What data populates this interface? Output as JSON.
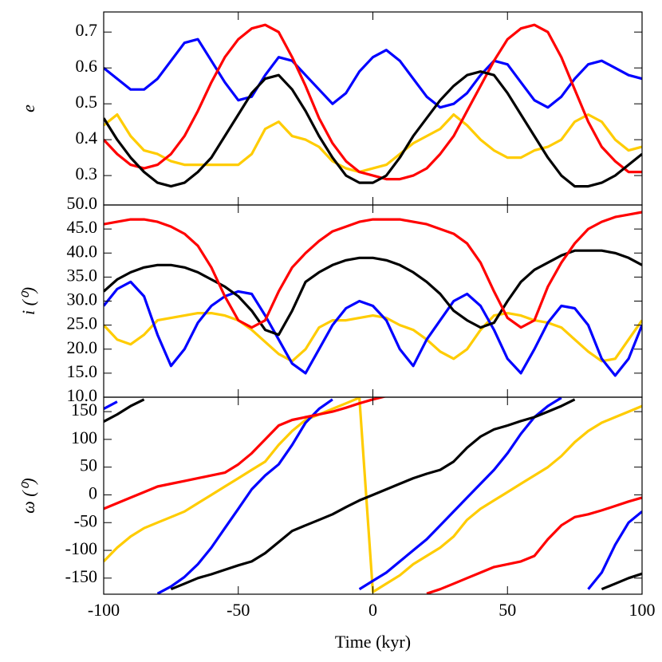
{
  "chart_data": [
    {
      "type": "line",
      "ylabel": "e",
      "x": [
        -100,
        -95,
        -90,
        -85,
        -80,
        -75,
        -70,
        -65,
        -60,
        -55,
        -50,
        -45,
        -40,
        -35,
        -30,
        -25,
        -20,
        -15,
        -10,
        -5,
        0,
        5,
        10,
        15,
        20,
        25,
        30,
        35,
        40,
        45,
        50,
        55,
        60,
        65,
        70,
        75,
        80,
        85,
        90,
        95,
        100
      ],
      "xlim": [
        -100,
        100
      ],
      "ylim": [
        0.218,
        0.756
      ],
      "yticks": [
        0.3,
        0.4,
        0.5,
        0.6,
        0.7
      ],
      "series": [
        {
          "color": "#ffcc00",
          "values": [
            0.44,
            0.47,
            0.41,
            0.37,
            0.36,
            0.34,
            0.33,
            0.33,
            0.33,
            0.33,
            0.33,
            0.36,
            0.43,
            0.45,
            0.41,
            0.4,
            0.38,
            0.34,
            0.32,
            0.31,
            0.32,
            0.33,
            0.36,
            0.39,
            0.41,
            0.43,
            0.47,
            0.44,
            0.4,
            0.37,
            0.35,
            0.35,
            0.37,
            0.38,
            0.4,
            0.45,
            0.47,
            0.45,
            0.4,
            0.37,
            0.38
          ]
        },
        {
          "color": "#0000ff",
          "values": [
            0.6,
            0.57,
            0.54,
            0.54,
            0.57,
            0.62,
            0.67,
            0.68,
            0.62,
            0.56,
            0.51,
            0.52,
            0.58,
            0.63,
            0.62,
            0.58,
            0.54,
            0.5,
            0.53,
            0.59,
            0.63,
            0.65,
            0.62,
            0.57,
            0.52,
            0.49,
            0.5,
            0.53,
            0.58,
            0.62,
            0.61,
            0.56,
            0.51,
            0.49,
            0.52,
            0.57,
            0.61,
            0.62,
            0.6,
            0.58,
            0.57
          ]
        },
        {
          "color": "#ff0000",
          "values": [
            0.4,
            0.36,
            0.33,
            0.32,
            0.33,
            0.36,
            0.41,
            0.48,
            0.56,
            0.63,
            0.68,
            0.71,
            0.72,
            0.7,
            0.63,
            0.55,
            0.46,
            0.39,
            0.34,
            0.31,
            0.3,
            0.29,
            0.29,
            0.3,
            0.32,
            0.36,
            0.41,
            0.48,
            0.55,
            0.62,
            0.68,
            0.71,
            0.72,
            0.7,
            0.63,
            0.54,
            0.45,
            0.38,
            0.34,
            0.31,
            0.31
          ]
        },
        {
          "color": "#000000",
          "values": [
            0.46,
            0.4,
            0.35,
            0.31,
            0.28,
            0.27,
            0.28,
            0.31,
            0.35,
            0.41,
            0.47,
            0.53,
            0.57,
            0.58,
            0.54,
            0.48,
            0.41,
            0.35,
            0.3,
            0.28,
            0.28,
            0.3,
            0.35,
            0.41,
            0.46,
            0.51,
            0.55,
            0.58,
            0.59,
            0.58,
            0.53,
            0.47,
            0.41,
            0.35,
            0.3,
            0.27,
            0.27,
            0.28,
            0.3,
            0.33,
            0.36
          ]
        }
      ]
    },
    {
      "type": "line",
      "ylabel": "i (⁰)",
      "x": [
        -100,
        -95,
        -90,
        -85,
        -80,
        -75,
        -70,
        -65,
        -60,
        -55,
        -50,
        -45,
        -40,
        -35,
        -30,
        -25,
        -20,
        -15,
        -10,
        -5,
        0,
        5,
        10,
        15,
        20,
        25,
        30,
        35,
        40,
        45,
        50,
        55,
        60,
        65,
        70,
        75,
        80,
        85,
        90,
        95,
        100
      ],
      "xlim": [
        -100,
        100
      ],
      "ylim": [
        10,
        50
      ],
      "yticks": [
        {
          "value": 10,
          "label": "10.0"
        },
        {
          "value": 15,
          "label": "15.0"
        },
        {
          "value": 20,
          "label": "20.0"
        },
        {
          "value": 25,
          "label": "25.0"
        },
        {
          "value": 30,
          "label": "30.0"
        },
        {
          "value": 35,
          "label": "35.0"
        },
        {
          "value": 40,
          "label": "40.0"
        },
        {
          "value": 45,
          "label": "45.0"
        },
        {
          "value": 50,
          "label": "50.0"
        }
      ],
      "series": [
        {
          "color": "#ffcc00",
          "values": [
            25,
            22,
            21,
            23,
            26,
            26.5,
            27,
            27.5,
            27.5,
            27,
            26,
            24,
            21.5,
            19,
            17.5,
            20,
            24.5,
            26,
            26,
            26.5,
            27,
            26.5,
            25,
            24,
            22,
            19.5,
            18,
            20,
            24,
            27,
            27.5,
            27,
            26,
            25.5,
            24.5,
            22,
            19.5,
            17.5,
            18,
            22,
            26
          ]
        },
        {
          "color": "#0000ff",
          "values": [
            29,
            32.5,
            34,
            31,
            23,
            16.5,
            20,
            25.5,
            29,
            31,
            32,
            31.5,
            27,
            22,
            17,
            15,
            20,
            25,
            28.5,
            30,
            29,
            26,
            20,
            16.5,
            22,
            26,
            30,
            31.5,
            29,
            24,
            18,
            15,
            20,
            25.5,
            29,
            28.5,
            25,
            18,
            14.5,
            18,
            25
          ]
        },
        {
          "color": "#000000",
          "values": [
            32,
            34.5,
            36,
            37,
            37.5,
            37.5,
            37,
            36,
            34.5,
            33,
            31,
            28,
            24,
            23,
            28,
            34,
            36,
            37.5,
            38.5,
            39,
            39,
            38.5,
            37.5,
            36,
            34,
            31.5,
            28,
            26,
            24.5,
            25.5,
            30,
            34,
            36.5,
            38,
            39.5,
            40.5,
            40.5,
            40.5,
            40,
            39,
            37.5
          ]
        },
        {
          "color": "#ff0000",
          "values": [
            46,
            46.5,
            47,
            47,
            46.5,
            45.5,
            44,
            41.5,
            37,
            31,
            26,
            24.5,
            26,
            32,
            37,
            40,
            42.5,
            44.5,
            45.5,
            46.5,
            47,
            47,
            47,
            46.5,
            46,
            45,
            44,
            42,
            38,
            32,
            26.5,
            24.5,
            26,
            33,
            38,
            42,
            45,
            46.5,
            47.5,
            48,
            48.5
          ]
        }
      ]
    },
    {
      "type": "line",
      "ylabel": "ω (⁰)",
      "xlabel": "Time (kyr)",
      "x": [
        -100,
        -95,
        -90,
        -85,
        -80,
        -75,
        -70,
        -65,
        -60,
        -55,
        -50,
        -45,
        -40,
        -35,
        -30,
        -25,
        -20,
        -15,
        -10,
        -5,
        0,
        5,
        10,
        15,
        20,
        25,
        30,
        35,
        40,
        45,
        50,
        55,
        60,
        65,
        70,
        75,
        80,
        85,
        90,
        95,
        100
      ],
      "xlim": [
        -100,
        100
      ],
      "xticks": [
        -100,
        -50,
        0,
        50,
        100
      ],
      "ylim": [
        -179,
        176
      ],
      "yticks": [
        -150,
        -100,
        -50,
        0,
        50,
        100,
        150
      ],
      "series": [
        {
          "color": "#ffcc00",
          "values": [
            -120,
            -95,
            -75,
            -60,
            -50,
            -40,
            -30,
            -15,
            0,
            15,
            30,
            45,
            60,
            90,
            115,
            135,
            145,
            155,
            165,
            175,
            -175,
            -160,
            -145,
            -125,
            -110,
            -95,
            -75,
            -45,
            -25,
            -10,
            5,
            20,
            35,
            50,
            70,
            95,
            115,
            130,
            140,
            150,
            160
          ]
        },
        {
          "color": "#0000ff",
          "values": [
            155,
            168,
            null,
            null,
            -178,
            -165,
            -148,
            -125,
            -95,
            -60,
            -25,
            10,
            35,
            55,
            90,
            130,
            155,
            172,
            null,
            -170,
            -155,
            -140,
            -120,
            -100,
            -80,
            -55,
            -30,
            -5,
            20,
            45,
            75,
            110,
            140,
            160,
            175,
            null,
            -170,
            -140,
            -90,
            -50,
            -30
          ]
        },
        {
          "color": "#ff0000",
          "values": [
            -25,
            -15,
            -5,
            5,
            15,
            20,
            25,
            30,
            35,
            40,
            55,
            75,
            100,
            125,
            135,
            140,
            145,
            150,
            157,
            165,
            172,
            178,
            null,
            null,
            -178,
            -170,
            -160,
            -150,
            -140,
            -130,
            -125,
            -120,
            -110,
            -80,
            -55,
            -40,
            -35,
            -28,
            -20,
            -12,
            -5
          ]
        },
        {
          "color": "#000000",
          "values": [
            132,
            145,
            160,
            172,
            null,
            -170,
            -160,
            -150,
            -143,
            -135,
            -127,
            -120,
            -105,
            -85,
            -65,
            -55,
            -45,
            -35,
            -22,
            -10,
            0,
            10,
            20,
            30,
            38,
            45,
            60,
            85,
            105,
            118,
            125,
            133,
            140,
            150,
            160,
            172,
            null,
            -170,
            -160,
            -150,
            -142
          ]
        }
      ]
    }
  ]
}
